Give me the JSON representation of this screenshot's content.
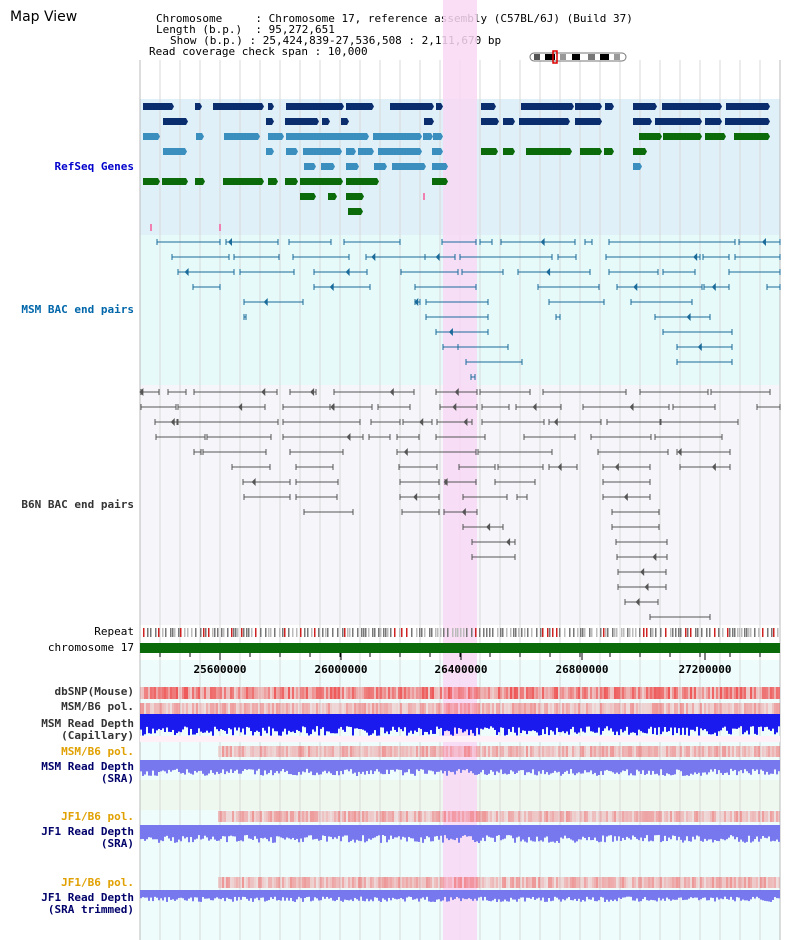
{
  "title": "Map View",
  "info": {
    "chromosome_label": "Chromosome",
    "chromosome_value": "Chromosome 17, reference assembly (C57BL/6J) (Build 37)",
    "length_label": "Length (b.p.)",
    "length_value": "95,272,651",
    "show_label": "Show (b.p.)",
    "show_value": "25,424,839-27,536,508 : 2,111,670 bp",
    "span_label": "Read coverage check span",
    "span_value": "10,000"
  },
  "tracks": {
    "refseq": "RefSeq Genes",
    "msm_bac": "MSM BAC end pairs",
    "b6n_bac": "B6N BAC end pairs",
    "repeat": "Repeat",
    "chromosome": "chromosome 17",
    "dbsnp": "dbSNP(Mouse)",
    "msm_b6_pol_1": "MSM/B6 pol.",
    "msm_read_depth_cap_1": "MSM Read Depth",
    "msm_read_depth_cap_2": "(Capillary)",
    "msm_b6_pol_2": "MSM/B6 pol.",
    "msm_read_depth_sra_1": "MSM Read Depth",
    "msm_read_depth_sra_2": "(SRA)",
    "jf1_b6_pol_1": "JF1/B6 pol.",
    "jf1_read_depth_1": "JF1 Read Depth",
    "jf1_read_depth_2": "(SRA)",
    "jf1_b6_pol_2": "JF1/B6 pol.",
    "jf1_read_depth_trim_1": "JF1 Read Depth",
    "jf1_read_depth_trim_2": "(SRA trimmed)"
  },
  "axis_ticks": [
    "25600000",
    "26000000",
    "26400000",
    "26800000",
    "27200000"
  ],
  "colors": {
    "refseq_bg": "#dff0f8",
    "msm_bg": "#e6fafa",
    "b6n_bg": "#f6f6fa",
    "highlight": "#f8d8f4",
    "gene_navy": "#0a2d6e",
    "gene_blue": "#3a8fbf",
    "gene_green": "#0b6b0b",
    "chromosome_bar": "#0b6b0b",
    "snp_red": "#ee5555",
    "depth_blue": "#1a1aee",
    "depth_light_blue": "#7777ee"
  }
}
